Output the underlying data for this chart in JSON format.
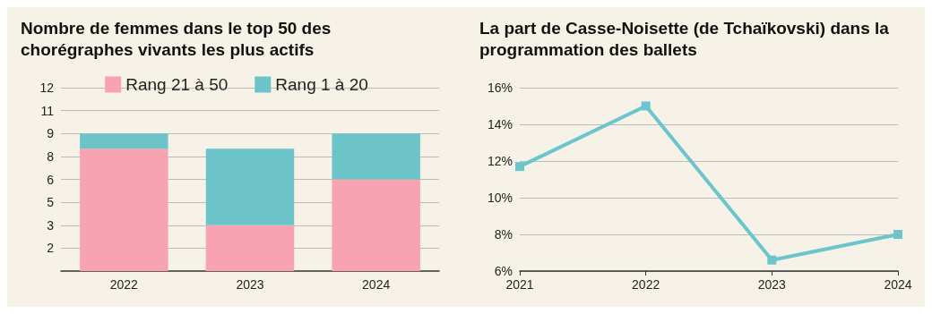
{
  "chart_data": [
    {
      "type": "bar",
      "title": "Nombre de femmes dans le top 50 des chorégraphes vivants les plus actifs",
      "categories": [
        "2022",
        "2023",
        "2024"
      ],
      "stacked": true,
      "series": [
        {
          "name": "Rang 21 à 50",
          "color": "#f7a3b1",
          "values": [
            8,
            3,
            6
          ]
        },
        {
          "name": "Rang 1 à 20",
          "color": "#6cc4c9",
          "values": [
            1,
            5,
            3
          ]
        }
      ],
      "ylim": [
        0,
        12
      ],
      "yticks": [
        {
          "value": 1.5,
          "label": "2"
        },
        3,
        {
          "value": 4.5,
          "label": "5"
        },
        6,
        {
          "value": 7.5,
          "label": "8"
        },
        9,
        {
          "value": 10.5,
          "label": "11"
        },
        12
      ],
      "grid": "y",
      "legend": "top"
    },
    {
      "type": "line",
      "title": "La part de Casse-Noisette (de Tchaïkovski) dans la programmation des ballets",
      "x": [
        2021,
        2022,
        2023,
        2024
      ],
      "series": [
        {
          "color": "#6cc4cc",
          "values": [
            11.7,
            15.0,
            6.6,
            8.0
          ]
        }
      ],
      "xlim": [
        2021,
        2024
      ],
      "xticks": [
        2021,
        2022,
        2023,
        2024
      ],
      "ylim": [
        6,
        16
      ],
      "yticks": [
        {
          "value": 6,
          "label": "6%"
        },
        {
          "value": 8,
          "label": "8%"
        },
        {
          "value": 10,
          "label": "10%"
        },
        {
          "value": 12,
          "label": "12%"
        },
        {
          "value": 14,
          "label": "14%"
        },
        {
          "value": 16,
          "label": "16%"
        }
      ],
      "grid": "y",
      "marker": "square",
      "line_style": "solid"
    }
  ]
}
